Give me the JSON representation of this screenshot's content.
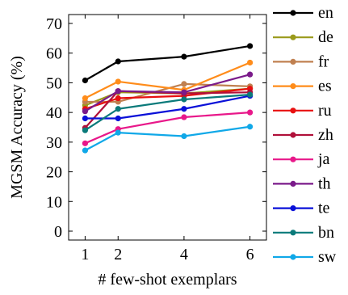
{
  "chart_data": {
    "type": "line",
    "title": "",
    "xlabel": "# few-shot exemplars",
    "ylabel": "MGSM Accuracy (%)",
    "x": [
      1,
      2,
      4,
      6
    ],
    "xticks": [
      "1",
      "2",
      "4",
      "6"
    ],
    "xlim": [
      0.5,
      6.5
    ],
    "yticks": [
      "0",
      "10",
      "20",
      "30",
      "40",
      "50",
      "60",
      "70"
    ],
    "ylim": [
      -3,
      73
    ],
    "grid": false,
    "legend_position": "right",
    "series": [
      {
        "name": "en",
        "color": "#000000",
        "values": [
          50.8,
          57.2,
          58.8,
          62.4
        ]
      },
      {
        "name": "de",
        "color": "#9a9a1a",
        "values": [
          42.4,
          46.8,
          46.4,
          48.0
        ]
      },
      {
        "name": "fr",
        "color": "#c08050",
        "values": [
          43.6,
          43.6,
          49.6,
          48.8
        ]
      },
      {
        "name": "es",
        "color": "#ff8c1a",
        "values": [
          44.8,
          50.4,
          47.6,
          56.8
        ]
      },
      {
        "name": "ru",
        "color": "#e81010",
        "values": [
          41.2,
          44.8,
          45.6,
          48.0
        ]
      },
      {
        "name": "zh",
        "color": "#b0103a",
        "values": [
          34.8,
          47.2,
          46.4,
          46.8
        ]
      },
      {
        "name": "ja",
        "color": "#e8188a",
        "values": [
          29.6,
          34.4,
          38.4,
          40.0
        ]
      },
      {
        "name": "th",
        "color": "#7a1a8a",
        "values": [
          40.4,
          47.2,
          46.8,
          52.8
        ]
      },
      {
        "name": "te",
        "color": "#0a10d8",
        "values": [
          38.0,
          38.0,
          41.2,
          45.6
        ]
      },
      {
        "name": "bn",
        "color": "#0a7a7a",
        "values": [
          34.0,
          41.2,
          44.4,
          46.0
        ]
      },
      {
        "name": "sw",
        "color": "#10a8e8",
        "values": [
          27.2,
          33.2,
          32.0,
          35.2
        ]
      }
    ]
  }
}
